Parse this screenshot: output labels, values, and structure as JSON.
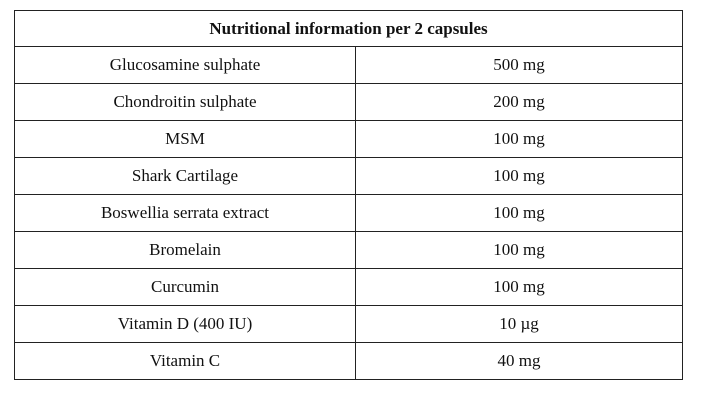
{
  "table": {
    "header": "Nutritional information per 2 capsules",
    "rows": [
      {
        "name": "Glucosamine sulphate",
        "amount": "500 mg"
      },
      {
        "name": "Chondroitin sulphate",
        "amount": "200 mg"
      },
      {
        "name": "MSM",
        "amount": "100 mg"
      },
      {
        "name": "Shark Cartilage",
        "amount": "100 mg"
      },
      {
        "name": "Boswellia serrata extract",
        "amount": "100 mg"
      },
      {
        "name": "Bromelain",
        "amount": "100 mg"
      },
      {
        "name": "Curcumin",
        "amount": "100 mg"
      },
      {
        "name": "Vitamin D (400 IU)",
        "amount": "10 µg"
      },
      {
        "name": "Vitamin C",
        "amount": "40 mg"
      }
    ]
  }
}
